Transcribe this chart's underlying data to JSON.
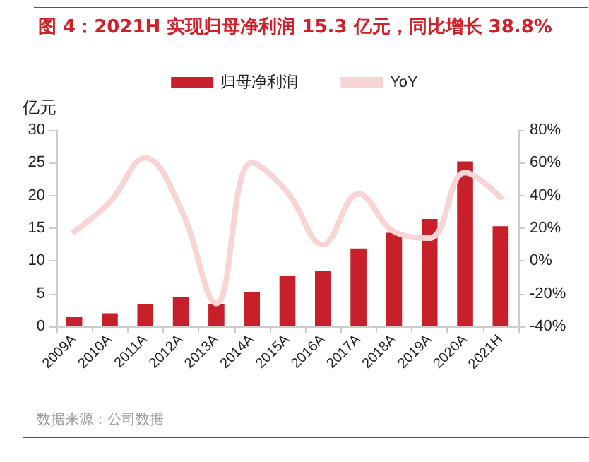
{
  "chart_data": {
    "type": "bar",
    "title": "图 4：2021H 实现归母净利润 15.3 亿元，同比增长 38.8%",
    "ylabel": "亿元",
    "categories": [
      "2009A",
      "2010A",
      "2011A",
      "2012A",
      "2013A",
      "2014A",
      "2015A",
      "2016A",
      "2017A",
      "2018A",
      "2019A",
      "2020A",
      "2021H"
    ],
    "series": [
      {
        "name": "归母净利润",
        "color": "#c8202a",
        "values": [
          1.4,
          2.0,
          3.4,
          4.5,
          3.4,
          5.3,
          7.7,
          8.5,
          11.9,
          14.3,
          16.4,
          25.2,
          15.3
        ]
      },
      {
        "name": "YoY",
        "type": "line",
        "axis": "y2",
        "color": "#f9d4d4",
        "values": [
          18,
          36,
          63,
          32,
          -26,
          60,
          42,
          10,
          41,
          18,
          14,
          54,
          38.8
        ]
      }
    ],
    "ylim": [
      0,
      30
    ],
    "yticks": [
      0,
      5,
      10,
      15,
      20,
      25,
      30
    ],
    "y2lim": [
      -40,
      80
    ],
    "y2ticks": [
      {
        "value": -40,
        "label": "-40%"
      },
      {
        "value": -20,
        "label": "-20%"
      },
      {
        "value": 0,
        "label": "0%"
      },
      {
        "value": 20,
        "label": "20%"
      },
      {
        "value": 40,
        "label": "40%"
      },
      {
        "value": 60,
        "label": "60%"
      },
      {
        "value": 80,
        "label": "80%"
      }
    ],
    "grid": false,
    "legend": "top",
    "marker": "none",
    "annotations": [
      "数据来源：公司数据"
    ]
  }
}
